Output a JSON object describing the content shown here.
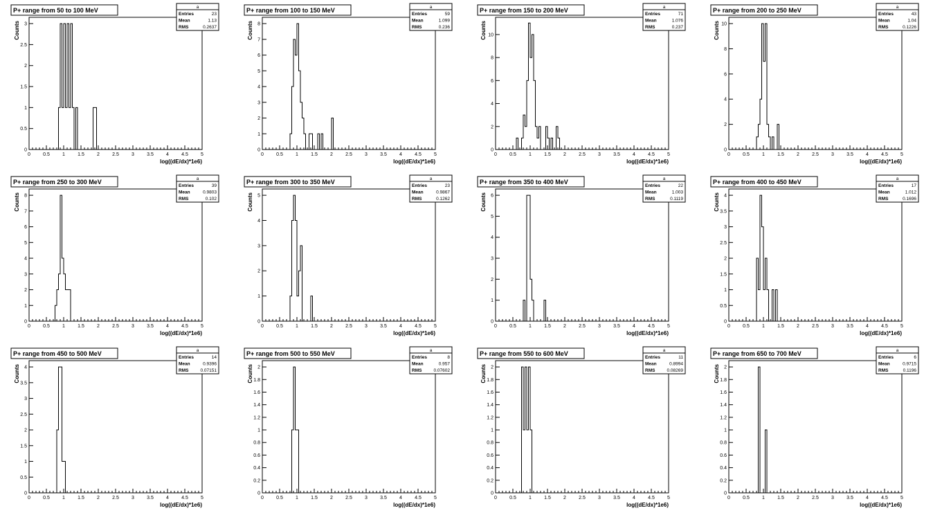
{
  "chart_data": [
    {
      "type": "bar",
      "title": "P+ range from 50 to 100 MeV",
      "xlabel": "log((dE/dx)*1e6)",
      "ylabel": "Counts",
      "xlim": [
        0,
        5
      ],
      "ylim": [
        0,
        3.15
      ],
      "yticks": [
        "0",
        "0.5",
        "1",
        "1.5",
        "2",
        "2.5",
        "3"
      ],
      "stats": {
        "name": "a",
        "entries": "23",
        "mean": "1.13",
        "rms": "0.2637"
      },
      "bins": [
        [
          0.85,
          0.9,
          1
        ],
        [
          0.9,
          0.95,
          3
        ],
        [
          0.95,
          1,
          1
        ],
        [
          1,
          1.05,
          3
        ],
        [
          1.05,
          1.1,
          1
        ],
        [
          1.1,
          1.15,
          3
        ],
        [
          1.15,
          1.2,
          1
        ],
        [
          1.2,
          1.25,
          3
        ],
        [
          1.25,
          1.3,
          1
        ],
        [
          1.3,
          1.35,
          0
        ],
        [
          1.35,
          1.4,
          1
        ],
        [
          1.85,
          1.9,
          1
        ],
        [
          1.9,
          1.95,
          1
        ]
      ]
    },
    {
      "type": "bar",
      "title": "P+ range from 100 to 150 MeV",
      "xlabel": "log((dE/dx)*1e6)",
      "ylabel": "Counts",
      "xlim": [
        0,
        5
      ],
      "ylim": [
        0,
        8.4
      ],
      "yticks": [
        "0",
        "1",
        "2",
        "3",
        "4",
        "5",
        "6",
        "7",
        "8"
      ],
      "stats": {
        "name": "a",
        "entries": "59",
        "mean": "1.099",
        "rms": "0.236"
      },
      "bins": [
        [
          0.8,
          0.85,
          1
        ],
        [
          0.85,
          0.9,
          4
        ],
        [
          0.9,
          0.95,
          7
        ],
        [
          0.95,
          1,
          6
        ],
        [
          1,
          1.05,
          8
        ],
        [
          1.05,
          1.1,
          5
        ],
        [
          1.1,
          1.15,
          3
        ],
        [
          1.15,
          1.2,
          2
        ],
        [
          1.2,
          1.25,
          1
        ],
        [
          1.35,
          1.4,
          1
        ],
        [
          1.4,
          1.45,
          1
        ],
        [
          1.6,
          1.65,
          1
        ],
        [
          1.7,
          1.75,
          1
        ],
        [
          2,
          2.05,
          2
        ]
      ]
    },
    {
      "type": "bar",
      "title": "P+ range from 150 to 200 MeV",
      "xlabel": "log((dE/dx)*1e6)",
      "ylabel": "Counts",
      "xlim": [
        0,
        5
      ],
      "ylim": [
        0,
        11.5
      ],
      "yticks": [
        "0",
        "2",
        "4",
        "6",
        "8",
        "10"
      ],
      "stats": {
        "name": "a",
        "entries": "71",
        "mean": "1.076",
        "rms": "0.237"
      },
      "bins": [
        [
          0.6,
          0.65,
          1
        ],
        [
          0.75,
          0.8,
          1
        ],
        [
          0.8,
          0.85,
          3
        ],
        [
          0.85,
          0.9,
          2
        ],
        [
          0.9,
          0.95,
          6
        ],
        [
          0.95,
          1,
          11
        ],
        [
          1,
          1.05,
          8
        ],
        [
          1.05,
          1.1,
          10
        ],
        [
          1.1,
          1.15,
          6
        ],
        [
          1.15,
          1.2,
          2
        ],
        [
          1.2,
          1.25,
          1
        ],
        [
          1.25,
          1.3,
          2
        ],
        [
          1.45,
          1.5,
          2
        ],
        [
          1.5,
          1.55,
          1
        ],
        [
          1.6,
          1.65,
          1
        ],
        [
          1.75,
          1.8,
          2
        ],
        [
          1.8,
          1.85,
          1
        ]
      ]
    },
    {
      "type": "bar",
      "title": "P+ range from 200 to 250 MeV",
      "xlabel": "log((dE/dx)*1e6)",
      "ylabel": "Counts",
      "xlim": [
        0,
        5
      ],
      "ylim": [
        0,
        10.5
      ],
      "yticks": [
        "0",
        "2",
        "4",
        "6",
        "8",
        "10"
      ],
      "stats": {
        "name": "a",
        "entries": "43",
        "mean": "1.04",
        "rms": "0.1226"
      },
      "bins": [
        [
          0.8,
          0.85,
          1
        ],
        [
          0.85,
          0.9,
          2
        ],
        [
          0.9,
          0.95,
          4
        ],
        [
          0.95,
          1,
          10
        ],
        [
          1,
          1.05,
          7
        ],
        [
          1.05,
          1.1,
          10
        ],
        [
          1.1,
          1.15,
          2
        ],
        [
          1.15,
          1.2,
          1
        ],
        [
          1.25,
          1.3,
          1
        ],
        [
          1.4,
          1.45,
          2
        ]
      ]
    },
    {
      "type": "bar",
      "title": "P+ range from 250 to 300 MeV",
      "xlabel": "log((dE/dx)*1e6)",
      "ylabel": "Counts",
      "xlim": [
        0,
        5
      ],
      "ylim": [
        0,
        8.4
      ],
      "yticks": [
        "0",
        "1",
        "2",
        "3",
        "4",
        "5",
        "6",
        "7",
        "8"
      ],
      "stats": {
        "name": "a",
        "entries": "39",
        "mean": "0.9803",
        "rms": "0.102"
      },
      "bins": [
        [
          0.75,
          0.8,
          1
        ],
        [
          0.8,
          0.85,
          2
        ],
        [
          0.85,
          0.9,
          3
        ],
        [
          0.9,
          0.95,
          8
        ],
        [
          0.95,
          1,
          4
        ],
        [
          1,
          1.05,
          3
        ],
        [
          1.05,
          1.1,
          2
        ],
        [
          1.1,
          1.15,
          2
        ],
        [
          1.15,
          1.2,
          2
        ]
      ]
    },
    {
      "type": "bar",
      "title": "P+ range from 300 to 350 MeV",
      "xlabel": "log((dE/dx)*1e6)",
      "ylabel": "Counts",
      "xlim": [
        0,
        5
      ],
      "ylim": [
        0,
        5.25
      ],
      "yticks": [
        "0",
        "1",
        "2",
        "3",
        "4",
        "5"
      ],
      "stats": {
        "name": "a",
        "entries": "23",
        "mean": "0.9867",
        "rms": "0.1262"
      },
      "bins": [
        [
          0.8,
          0.85,
          1
        ],
        [
          0.85,
          0.9,
          4
        ],
        [
          0.9,
          0.95,
          5
        ],
        [
          0.95,
          1,
          4
        ],
        [
          1,
          1.05,
          1
        ],
        [
          1.05,
          1.1,
          2
        ],
        [
          1.1,
          1.15,
          3
        ],
        [
          1.4,
          1.45,
          1
        ]
      ]
    },
    {
      "type": "bar",
      "title": "P+ range from 350 to 400 MeV",
      "xlabel": "log((dE/dx)*1e6)",
      "ylabel": "Counts",
      "xlim": [
        0,
        5
      ],
      "ylim": [
        0,
        6.3
      ],
      "yticks": [
        "0",
        "1",
        "2",
        "3",
        "4",
        "5",
        "6"
      ],
      "stats": {
        "name": "a",
        "entries": "22",
        "mean": "1.003",
        "rms": "0.1119"
      },
      "bins": [
        [
          0.8,
          0.85,
          1
        ],
        [
          0.85,
          0.9,
          0
        ],
        [
          0.9,
          0.95,
          6
        ],
        [
          0.95,
          1,
          6
        ],
        [
          1,
          1.05,
          2
        ],
        [
          1.05,
          1.1,
          1
        ],
        [
          1.4,
          1.45,
          1
        ]
      ]
    },
    {
      "type": "bar",
      "title": "P+ range from 400 to 450 MeV",
      "xlabel": "log((dE/dx)*1e6)",
      "ylabel": "Counts",
      "xlim": [
        0,
        5
      ],
      "ylim": [
        0,
        4.2
      ],
      "yticks": [
        "0",
        "0.5",
        "1",
        "1.5",
        "2",
        "2.5",
        "3",
        "3.5",
        "4"
      ],
      "stats": {
        "name": "a",
        "entries": "17",
        "mean": "1.012",
        "rms": "0.1696"
      },
      "bins": [
        [
          0.8,
          0.85,
          2
        ],
        [
          0.85,
          0.9,
          1
        ],
        [
          0.9,
          0.95,
          4
        ],
        [
          0.95,
          1,
          3
        ],
        [
          1,
          1.05,
          1
        ],
        [
          1.05,
          1.1,
          2
        ],
        [
          1.1,
          1.15,
          1
        ],
        [
          1.25,
          1.3,
          1
        ],
        [
          1.35,
          1.4,
          1
        ]
      ]
    },
    {
      "type": "bar",
      "title": "P+ range from 450 to 500 MeV",
      "xlabel": "log((dE/dx)*1e6)",
      "ylabel": "Counts",
      "xlim": [
        0,
        5
      ],
      "ylim": [
        0,
        4.2
      ],
      "yticks": [
        "0",
        "0.5",
        "1",
        "1.5",
        "2",
        "2.5",
        "3",
        "3.5",
        "4"
      ],
      "stats": {
        "name": "a",
        "entries": "14",
        "mean": "0.9396",
        "rms": "0.07151"
      },
      "bins": [
        [
          0.8,
          0.85,
          2
        ],
        [
          0.85,
          0.9,
          4
        ],
        [
          0.9,
          0.95,
          4
        ],
        [
          0.95,
          1,
          1
        ],
        [
          1,
          1.05,
          1
        ]
      ]
    },
    {
      "type": "bar",
      "title": "P+ range from 500 to 550 MeV",
      "xlabel": "log((dE/dx)*1e6)",
      "ylabel": "Counts",
      "xlim": [
        0,
        5
      ],
      "ylim": [
        0,
        2.1
      ],
      "yticks": [
        "0",
        "0.2",
        "0.4",
        "0.6",
        "0.8",
        "1",
        "1.2",
        "1.4",
        "1.6",
        "1.8",
        "2"
      ],
      "stats": {
        "name": "a",
        "entries": "8",
        "mean": "0.957",
        "rms": "0.07602"
      },
      "bins": [
        [
          0.85,
          0.9,
          1
        ],
        [
          0.9,
          0.95,
          2
        ],
        [
          0.95,
          1,
          1
        ],
        [
          1,
          1.05,
          1
        ]
      ]
    },
    {
      "type": "bar",
      "title": "P+ range from 550 to 600 MeV",
      "xlabel": "log((dE/dx)*1e6)",
      "ylabel": "Counts",
      "xlim": [
        0,
        5
      ],
      "ylim": [
        0,
        2.1
      ],
      "yticks": [
        "0",
        "0.2",
        "0.4",
        "0.6",
        "0.8",
        "1",
        "1.2",
        "1.4",
        "1.6",
        "1.8",
        "2"
      ],
      "stats": {
        "name": "a",
        "entries": "11",
        "mean": "0.8994",
        "rms": "0.08269"
      },
      "bins": [
        [
          0.75,
          0.8,
          2
        ],
        [
          0.8,
          0.85,
          1
        ],
        [
          0.85,
          0.9,
          2
        ],
        [
          0.9,
          0.95,
          1
        ],
        [
          0.95,
          1,
          2
        ],
        [
          1,
          1.05,
          1
        ]
      ]
    },
    {
      "type": "bar",
      "title": "P+ range from 650 to 700 MeV",
      "xlabel": "log((dE/dx)*1e6)",
      "ylabel": "Counts",
      "xlim": [
        0,
        5
      ],
      "ylim": [
        0,
        2.1
      ],
      "yticks": [
        "0",
        "0.2",
        "0.4",
        "0.6",
        "0.8",
        "1",
        "1.2",
        "1.4",
        "1.6",
        "1.8",
        "2"
      ],
      "stats": {
        "name": "a",
        "entries": "6",
        "mean": "0.9715",
        "rms": "0.1196"
      },
      "bins": [
        [
          0.85,
          0.9,
          2
        ],
        [
          1.05,
          1.1,
          1
        ]
      ]
    }
  ],
  "xticks": [
    "0",
    "0.5",
    "1",
    "1.5",
    "2",
    "2.5",
    "3",
    "3.5",
    "4",
    "4.5",
    "5"
  ],
  "stat_labels": {
    "entries": "Entries",
    "mean": "Mean",
    "rms": "RMS"
  }
}
